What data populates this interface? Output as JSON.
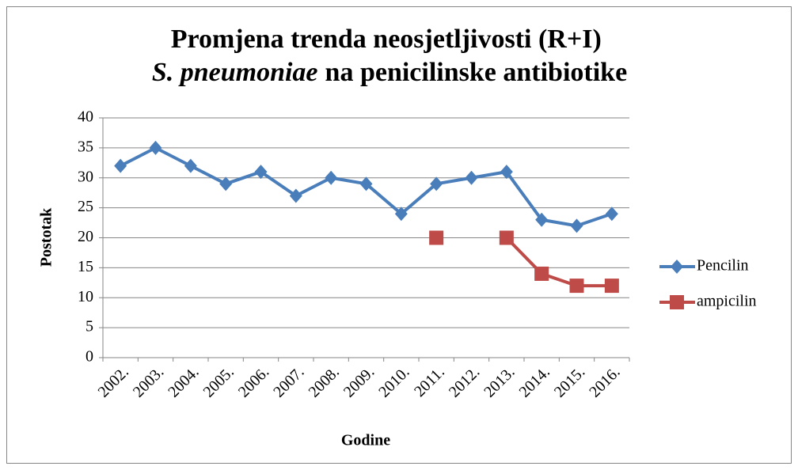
{
  "chart_data": {
    "type": "line",
    "title": [
      "Promjena trenda neosjetljivosti (R+I)",
      "S. pneumoniae",
      "na penicilinske antibiotike"
    ],
    "x_label": "Godine",
    "y_label": "Postotak",
    "categories": [
      "2002.",
      "2003.",
      "2004.",
      "2005.",
      "2006.",
      "2007.",
      "2008.",
      "2009.",
      "2010.",
      "2011.",
      "2012.",
      "2013.",
      "2014.",
      "2015.",
      "2016."
    ],
    "series": [
      {
        "name": "Pencilin",
        "color": "#4a7ebb",
        "marker": "diamond",
        "values": [
          32,
          35,
          32,
          29,
          31,
          27,
          30,
          29,
          24,
          29,
          30,
          31,
          23,
          22,
          24
        ]
      },
      {
        "name": "ampicilin",
        "color": "#be4b48",
        "marker": "square",
        "values": [
          null,
          null,
          null,
          null,
          null,
          null,
          null,
          null,
          null,
          20,
          null,
          20,
          14,
          12,
          12
        ]
      }
    ],
    "ylim": [
      0,
      40
    ],
    "yticks": [
      0,
      5,
      10,
      15,
      20,
      25,
      30,
      35,
      40
    ],
    "grid": true,
    "legend": "right"
  }
}
